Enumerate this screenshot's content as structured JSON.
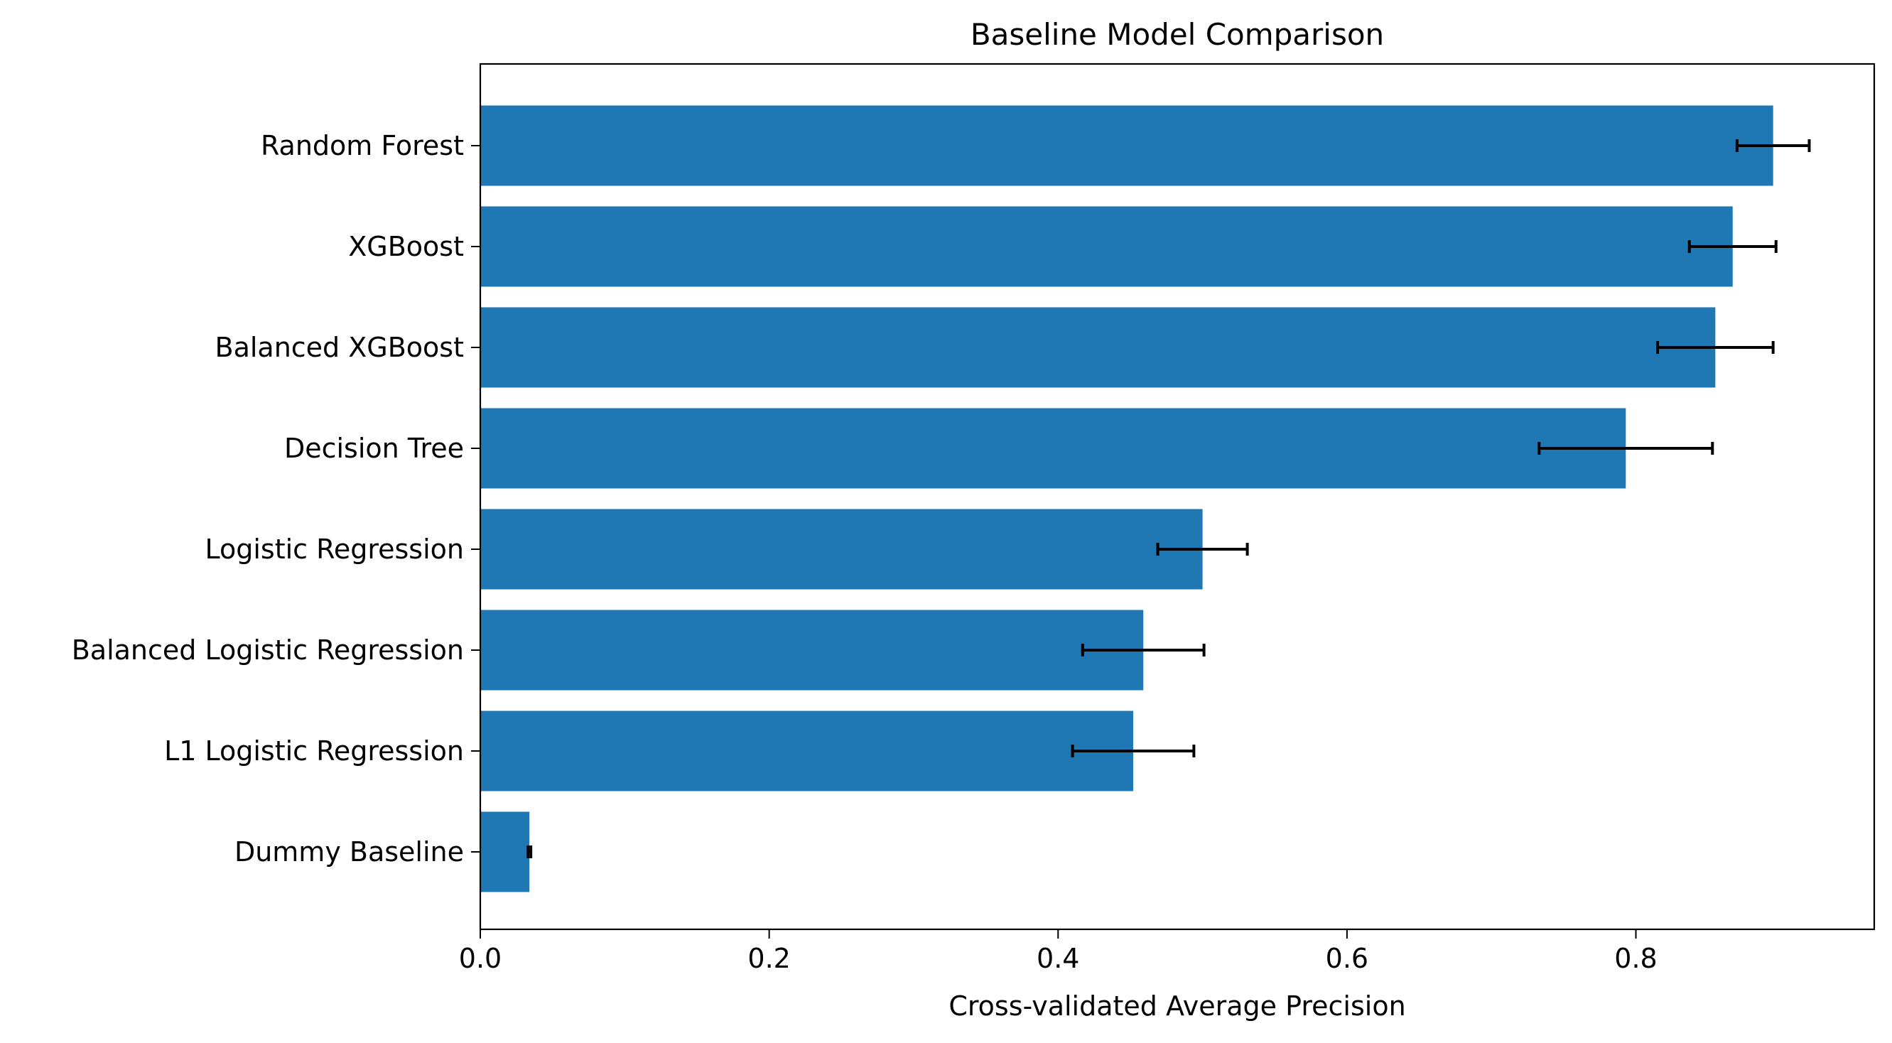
{
  "chart_data": {
    "type": "bar",
    "orientation": "horizontal",
    "title": "Baseline Model Comparison",
    "xlabel": "Cross-validated Average Precision",
    "ylabel": "",
    "xlim": [
      0,
      0.965
    ],
    "xticks": [
      0.0,
      0.2,
      0.4,
      0.6,
      0.8
    ],
    "xtick_labels": [
      "0.0",
      "0.2",
      "0.4",
      "0.6",
      "0.8"
    ],
    "categories": [
      "Random Forest",
      "XGBoost",
      "Balanced XGBoost",
      "Decision Tree",
      "Logistic Regression",
      "Balanced Logistic Regression",
      "L1 Logistic Regression",
      "Dummy Baseline"
    ],
    "values": [
      0.895,
      0.867,
      0.855,
      0.793,
      0.5,
      0.459,
      0.452,
      0.034
    ],
    "errors": [
      0.025,
      0.03,
      0.04,
      0.06,
      0.031,
      0.042,
      0.042,
      0.001
    ],
    "bar_color": "#1f77b4",
    "errorbar_color": "#000000",
    "grid": false
  }
}
